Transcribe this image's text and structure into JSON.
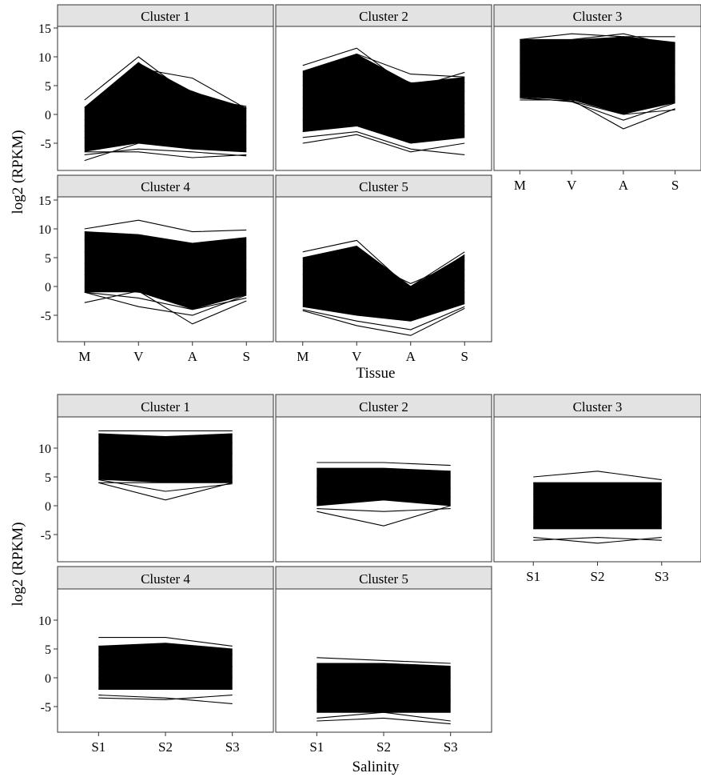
{
  "chart_data": [
    {
      "type": "line",
      "xlabel": "Tissue",
      "ylabel": "log2 (RPKM)",
      "ylim": [
        -9,
        16
      ],
      "yticks": [
        -5,
        0,
        5,
        10,
        15
      ],
      "categories": [
        "M",
        "V",
        "A",
        "S"
      ],
      "panels": [
        {
          "title": "Cluster 1",
          "lines": [
            {
              "values": [
                2.5,
                10,
                3,
                1.4
              ]
            },
            {
              "values": [
                1.2,
                9,
                2.2,
                1.2
              ]
            },
            {
              "values": [
                0.5,
                8,
                6.3,
                1
              ]
            },
            {
              "values": [
                -1,
                7,
                4,
                0.5
              ]
            },
            {
              "values": [
                -2,
                5,
                1,
                -1
              ]
            },
            {
              "values": [
                -3,
                3,
                -1,
                -2
              ]
            },
            {
              "values": [
                -4,
                1,
                -3,
                -3
              ]
            },
            {
              "values": [
                -5.5,
                -3,
                -5.5,
                -6
              ]
            },
            {
              "values": [
                -6.5,
                -6.5,
                -7.5,
                -7
              ]
            },
            {
              "values": [
                -8,
                -5,
                -6,
                -6.5
              ]
            },
            {
              "values": [
                -7,
                -6,
                -6.5,
                -7.2
              ]
            }
          ]
        },
        {
          "title": "Cluster 2",
          "lines": [
            {
              "values": [
                8.5,
                11.5,
                4.5,
                7.3
              ]
            },
            {
              "values": [
                7.5,
                10.5,
                7,
                6.5
              ]
            },
            {
              "values": [
                6.5,
                9.5,
                5.5,
                5.5
              ]
            },
            {
              "values": [
                5,
                8,
                4,
                4
              ]
            },
            {
              "values": [
                3,
                6,
                2,
                2
              ]
            },
            {
              "values": [
                1,
                4,
                0,
                0
              ]
            },
            {
              "values": [
                -1,
                1,
                -2,
                -2
              ]
            },
            {
              "values": [
                -3,
                -2,
                -5,
                -4
              ]
            },
            {
              "values": [
                -5,
                -3.5,
                -6.5,
                -5
              ]
            },
            {
              "values": [
                -4,
                -3,
                -6,
                -7
              ]
            }
          ]
        },
        {
          "title": "Cluster 3",
          "lines": [
            {
              "values": [
                13,
                14,
                13.5,
                12.5
              ]
            },
            {
              "values": [
                13,
                13,
                14,
                12
              ]
            },
            {
              "values": [
                12.5,
                12.5,
                13.5,
                13.5
              ]
            },
            {
              "values": [
                11,
                11,
                11,
                11
              ]
            },
            {
              "values": [
                9,
                9,
                9,
                9
              ]
            },
            {
              "values": [
                7,
                7,
                7,
                7
              ]
            },
            {
              "values": [
                5,
                5,
                5,
                5
              ]
            },
            {
              "values": [
                3.5,
                3,
                1,
                3
              ]
            },
            {
              "values": [
                2.5,
                2.5,
                -2.5,
                1
              ]
            },
            {
              "values": [
                3,
                2.2,
                -1,
                2
              ]
            },
            {
              "values": [
                2.8,
                2.3,
                0,
                0.8
              ]
            }
          ]
        },
        {
          "title": "Cluster 4",
          "lines": [
            {
              "values": [
                10,
                11.5,
                9.5,
                9.8
              ]
            },
            {
              "values": [
                9.5,
                9,
                7.5,
                8.5
              ]
            },
            {
              "values": [
                8,
                7,
                6,
                7
              ]
            },
            {
              "values": [
                6,
                5,
                4,
                5
              ]
            },
            {
              "values": [
                4,
                3,
                2,
                3
              ]
            },
            {
              "values": [
                2,
                1,
                0,
                1
              ]
            },
            {
              "values": [
                0,
                -1,
                -2,
                -1
              ]
            },
            {
              "values": [
                -1,
                -2,
                -4,
                -2
              ]
            },
            {
              "values": [
                -2.8,
                -0.8,
                -6.5,
                -2.5
              ]
            },
            {
              "values": [
                -1,
                -3.5,
                -5,
                -1.5
              ]
            }
          ]
        },
        {
          "title": "Cluster 5",
          "lines": [
            {
              "values": [
                6,
                8,
                -0.5,
                5.5
              ]
            },
            {
              "values": [
                5,
                7,
                0,
                6
              ]
            },
            {
              "values": [
                3.5,
                5,
                0.5,
                4.5
              ]
            },
            {
              "values": [
                2,
                3,
                -0.5,
                3
              ]
            },
            {
              "values": [
                0,
                0,
                -2,
                1
              ]
            },
            {
              "values": [
                -2,
                -3,
                -4,
                -1
              ]
            },
            {
              "values": [
                -3.5,
                -5,
                -6,
                -3
              ]
            },
            {
              "values": [
                -4.2,
                -6.8,
                -8.5,
                -3.8
              ]
            },
            {
              "values": [
                -4,
                -6,
                -7.5,
                -3.5
              ]
            }
          ]
        }
      ]
    },
    {
      "type": "line",
      "xlabel": "Salinity",
      "ylabel": "log2 (RPKM)",
      "ylim": [
        -9,
        14
      ],
      "yticks": [
        -5,
        0,
        5,
        10
      ],
      "categories": [
        "S1",
        "S2",
        "S3"
      ],
      "panels": [
        {
          "title": "Cluster 1",
          "lines": [
            {
              "values": [
                13,
                13,
                13
              ]
            },
            {
              "values": [
                12.5,
                12,
                12.5
              ]
            },
            {
              "values": [
                11,
                11,
                11
              ]
            },
            {
              "values": [
                9,
                9,
                9
              ]
            },
            {
              "values": [
                7,
                7,
                7
              ]
            },
            {
              "values": [
                5,
                5,
                5
              ]
            },
            {
              "values": [
                4,
                4,
                4
              ]
            },
            {
              "values": [
                4,
                1,
                4
              ]
            },
            {
              "values": [
                4.5,
                2.5,
                3.8
              ]
            }
          ]
        },
        {
          "title": "Cluster 2",
          "lines": [
            {
              "values": [
                7.5,
                7.5,
                7
              ]
            },
            {
              "values": [
                6.5,
                6.5,
                6
              ]
            },
            {
              "values": [
                5,
                5,
                5
              ]
            },
            {
              "values": [
                3,
                3,
                3
              ]
            },
            {
              "values": [
                1.5,
                1.5,
                1.5
              ]
            },
            {
              "values": [
                0,
                1,
                0
              ]
            },
            {
              "values": [
                -1,
                -3.5,
                0
              ]
            },
            {
              "values": [
                -0.5,
                -1,
                -0.5
              ]
            }
          ]
        },
        {
          "title": "Cluster 3",
          "lines": [
            {
              "values": [
                5,
                6,
                4.5
              ]
            },
            {
              "values": [
                4,
                4,
                4
              ]
            },
            {
              "values": [
                2,
                3,
                2
              ]
            },
            {
              "values": [
                0,
                1,
                0
              ]
            },
            {
              "values": [
                -2,
                -2,
                -2
              ]
            },
            {
              "values": [
                -4,
                -4,
                -4
              ]
            },
            {
              "values": [
                -5.5,
                -6.5,
                -5.5
              ]
            },
            {
              "values": [
                -6,
                -5.5,
                -6
              ]
            }
          ]
        },
        {
          "title": "Cluster 4",
          "lines": [
            {
              "values": [
                7,
                7,
                5.5
              ]
            },
            {
              "values": [
                5.5,
                6,
                5
              ]
            },
            {
              "values": [
                4,
                4.5,
                4
              ]
            },
            {
              "values": [
                2,
                3,
                2
              ]
            },
            {
              "values": [
                0,
                1,
                0
              ]
            },
            {
              "values": [
                -2,
                -2,
                -2
              ]
            },
            {
              "values": [
                -3.5,
                -3.8,
                -3
              ]
            },
            {
              "values": [
                -3,
                -3.5,
                -4.5
              ]
            }
          ]
        },
        {
          "title": "Cluster 5",
          "lines": [
            {
              "values": [
                3.5,
                3,
                2.5
              ]
            },
            {
              "values": [
                2.5,
                2.5,
                2
              ]
            },
            {
              "values": [
                0,
                1,
                0
              ]
            },
            {
              "values": [
                -2,
                -1,
                -2
              ]
            },
            {
              "values": [
                -4,
                -3,
                -4
              ]
            },
            {
              "values": [
                -6,
                -6,
                -6
              ]
            },
            {
              "values": [
                -7.5,
                -7,
                -8
              ]
            },
            {
              "values": [
                -7,
                -6,
                -7.5
              ]
            }
          ]
        }
      ]
    }
  ]
}
